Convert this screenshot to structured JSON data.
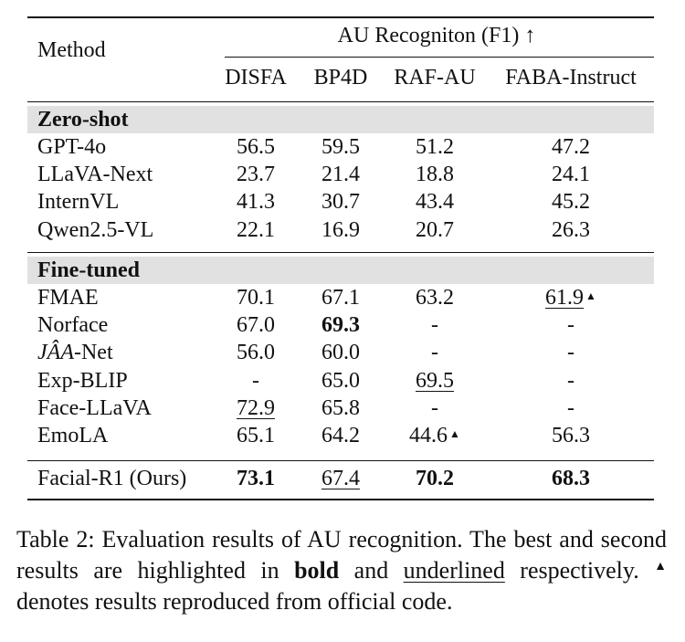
{
  "table": {
    "method_header": "Method",
    "group_header": "AU Recogniton (F1) ↑",
    "columns": [
      "DISFA",
      "BP4D",
      "RAF-AU",
      "FABA-Instruct"
    ],
    "sections": [
      {
        "title": "Zero-shot",
        "rows": [
          {
            "method": "GPT-4o",
            "values": [
              "56.5",
              "59.5",
              "51.2",
              "47.2"
            ]
          },
          {
            "method": "LLaVA-Next",
            "values": [
              "23.7",
              "21.4",
              "18.8",
              "24.1"
            ]
          },
          {
            "method": "InternVL",
            "values": [
              "41.3",
              "30.7",
              "43.4",
              "45.2"
            ]
          },
          {
            "method": "Qwen2.5-VL",
            "values": [
              "22.1",
              "16.9",
              "20.7",
              "26.3"
            ]
          }
        ]
      },
      {
        "title": "Fine-tuned",
        "rows": [
          {
            "method": "FMAE",
            "values": [
              "70.1",
              "67.1",
              "63.2",
              "61.9"
            ],
            "underline": [
              false,
              false,
              false,
              true
            ],
            "marker": [
              false,
              false,
              false,
              true
            ]
          },
          {
            "method": "Norface",
            "values": [
              "67.0",
              "69.3",
              "-",
              "-"
            ],
            "bold": [
              false,
              true,
              false,
              false
            ]
          },
          {
            "method": "JÂA-Net",
            "values": [
              "56.0",
              "60.0",
              "-",
              "-"
            ]
          },
          {
            "method": "Exp-BLIP",
            "values": [
              "-",
              "65.0",
              "69.5",
              "-"
            ],
            "underline": [
              false,
              false,
              true,
              false
            ]
          },
          {
            "method": "Face-LLaVA",
            "values": [
              "72.9",
              "65.8",
              "-",
              "-"
            ],
            "underline": [
              true,
              false,
              false,
              false
            ]
          },
          {
            "method": "EmoLA",
            "values": [
              "65.1",
              "64.2",
              "44.6",
              "56.3"
            ],
            "marker": [
              false,
              false,
              true,
              false
            ]
          }
        ]
      }
    ],
    "final_row": {
      "method": "Facial-R1 (Ours)",
      "values": [
        "73.1",
        "67.4",
        "70.2",
        "68.3"
      ],
      "bold": [
        true,
        false,
        true,
        true
      ],
      "underline": [
        false,
        true,
        false,
        false
      ]
    },
    "marker_symbol": "▲"
  },
  "caption": {
    "part1": "Table 2: Evaluation results of AU recognition. The best and second results are highlighted in ",
    "bold_word": "bold",
    "part2": " and ",
    "underline_word": "underlined",
    "part3": " respectively. ",
    "marker": "▲",
    "part4": " denotes results reproduced from official code."
  }
}
